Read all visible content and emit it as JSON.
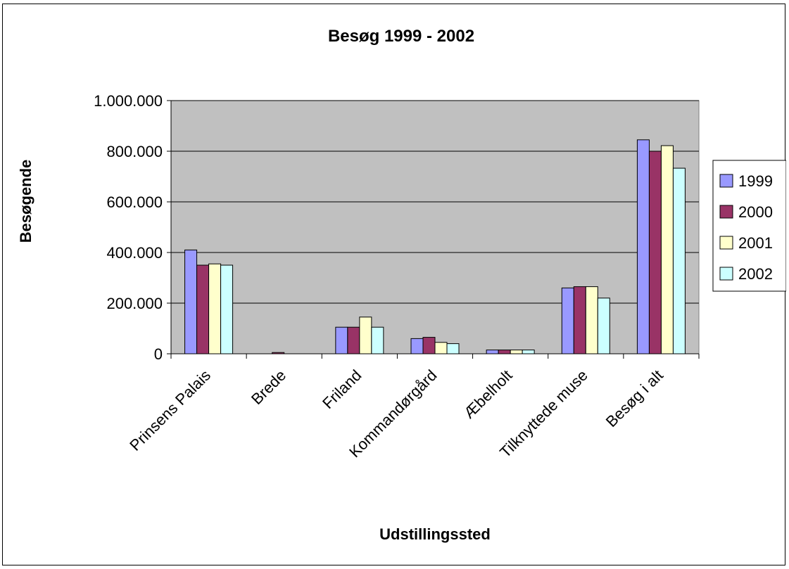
{
  "chart_data": {
    "type": "bar",
    "title": "Besøg 1999 - 2002",
    "xlabel": "Udstillingssted",
    "ylabel": "Besøgende",
    "ylim": [
      0,
      1000000
    ],
    "yticks": [
      0,
      200000,
      400000,
      600000,
      800000,
      1000000
    ],
    "ytick_labels": [
      "0",
      "200.000",
      "400.000",
      "600.000",
      "800.000",
      "1.000.000"
    ],
    "grid": true,
    "legend": "right",
    "categories": [
      "Prinsens Palais",
      "Brede",
      "Friland",
      "Kommandørgård",
      "Æbelholt",
      "Tilknyttede muse",
      "Besøg i alt"
    ],
    "series": [
      {
        "name": "1999",
        "color": "#9999ff",
        "values": [
          410000,
          0,
          105000,
          60000,
          15000,
          260000,
          845000
        ]
      },
      {
        "name": "2000",
        "color": "#993366",
        "values": [
          350000,
          5000,
          105000,
          65000,
          15000,
          265000,
          800000
        ]
      },
      {
        "name": "2001",
        "color": "#ffffcc",
        "values": [
          355000,
          0,
          145000,
          45000,
          15000,
          265000,
          822000
        ]
      },
      {
        "name": "2002",
        "color": "#ccffff",
        "values": [
          350000,
          0,
          105000,
          40000,
          15000,
          220000,
          733000
        ]
      }
    ],
    "plot_background": "#c0c0c0"
  }
}
